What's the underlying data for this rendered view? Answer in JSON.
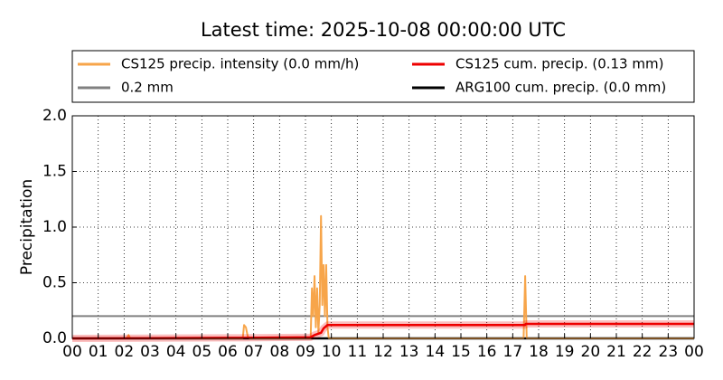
{
  "chart_data": {
    "type": "line",
    "title": "Latest time: 2025-10-08 00:00:00 UTC",
    "y_label": "Precipitation",
    "xlim": [
      0,
      24
    ],
    "ylim": [
      0,
      2
    ],
    "xticks": [
      {
        "value": 0,
        "label": "00"
      },
      {
        "value": 1,
        "label": "01"
      },
      {
        "value": 2,
        "label": "02"
      },
      {
        "value": 3,
        "label": "03"
      },
      {
        "value": 4,
        "label": "04"
      },
      {
        "value": 5,
        "label": "05"
      },
      {
        "value": 6,
        "label": "06"
      },
      {
        "value": 7,
        "label": "07"
      },
      {
        "value": 8,
        "label": "08"
      },
      {
        "value": 9,
        "label": "09"
      },
      {
        "value": 10,
        "label": "10"
      },
      {
        "value": 11,
        "label": "11"
      },
      {
        "value": 12,
        "label": "12"
      },
      {
        "value": 13,
        "label": "13"
      },
      {
        "value": 14,
        "label": "14"
      },
      {
        "value": 15,
        "label": "15"
      },
      {
        "value": 16,
        "label": "16"
      },
      {
        "value": 17,
        "label": "17"
      },
      {
        "value": 18,
        "label": "18"
      },
      {
        "value": 19,
        "label": "19"
      },
      {
        "value": 20,
        "label": "20"
      },
      {
        "value": 21,
        "label": "21"
      },
      {
        "value": 22,
        "label": "22"
      },
      {
        "value": 23,
        "label": "23"
      },
      {
        "value": 24,
        "label": "00"
      }
    ],
    "yticks": [
      {
        "value": 0,
        "label": "0.0"
      },
      {
        "value": 0.5,
        "label": "0.5"
      },
      {
        "value": 1,
        "label": "1.0"
      },
      {
        "value": 1.5,
        "label": "1.5"
      },
      {
        "value": 2,
        "label": "2.0"
      }
    ],
    "grid": true,
    "legend": "top",
    "legend_columns": 2,
    "series": [
      {
        "name": "CS125 precip. intensity (0.0 mm/h)",
        "color": "#f7a54a",
        "x": [
          0,
          2.1,
          2.17,
          2.24,
          6.58,
          6.63,
          6.7,
          6.77,
          6.84,
          9.2,
          9.25,
          9.3,
          9.35,
          9.4,
          9.45,
          9.5,
          9.55,
          9.6,
          9.65,
          9.7,
          9.75,
          9.8,
          9.85,
          9.9,
          17.42,
          17.48,
          17.54,
          24
        ],
        "values": [
          0,
          0,
          0.03,
          0,
          0,
          0.12,
          0.1,
          0.02,
          0,
          0,
          0.45,
          0.2,
          0.56,
          0.1,
          0.45,
          0.05,
          0.3,
          1.1,
          0.3,
          0.66,
          0.2,
          0.66,
          0.1,
          0,
          0,
          0.56,
          0,
          0
        ]
      },
      {
        "name": "0.2 mm",
        "color": "#808080",
        "x": [
          0,
          24
        ],
        "values": [
          0.2,
          0.2
        ]
      },
      {
        "name": "CS125 cum. precip. (0.13 mm)",
        "color": "#ee0000",
        "x": [
          0,
          6.6,
          9.2,
          9.35,
          9.6,
          9.7,
          9.85,
          17.48,
          17.5,
          24
        ],
        "values": [
          0,
          0.005,
          0.01,
          0.03,
          0.05,
          0.09,
          0.12,
          0.12,
          0.13,
          0.13
        ]
      },
      {
        "name": "ARG100 cum. precip. (0.0 mm)",
        "color": "#000000",
        "x": [
          0,
          24
        ],
        "values": [
          0,
          0
        ]
      }
    ]
  }
}
